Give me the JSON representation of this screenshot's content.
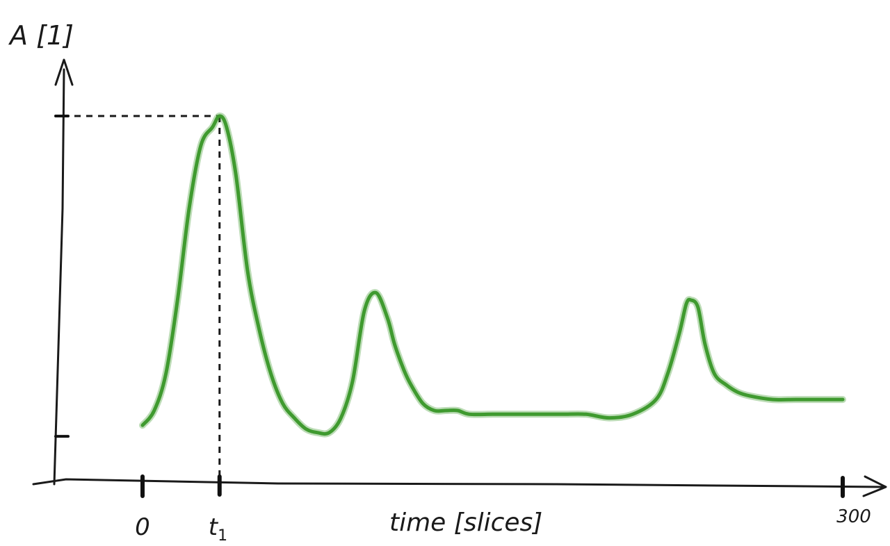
{
  "chart_data": {
    "type": "line",
    "xlabel": "time [slices]",
    "ylabel": "A [1]",
    "x_tick_labels": {
      "zero": "0",
      "t1_main": "t",
      "t1_sub": "1",
      "end": "300"
    },
    "xlim": [
      0,
      300
    ],
    "ylim": [
      0,
      1
    ],
    "t1_x": 33,
    "peak_y": 1.0,
    "y_tick_values": [
      0.13,
      1.0
    ],
    "line_color": "#3f9a2f",
    "grid": false,
    "legend": "none",
    "series": [
      {
        "x": [
          0,
          5,
          10,
          15,
          20,
          25,
          30,
          33,
          36,
          40,
          45,
          50,
          55,
          60,
          65,
          70,
          75,
          80,
          85,
          90,
          95,
          100,
          105,
          108,
          112,
          115,
          120,
          125,
          130,
          135,
          140,
          150,
          160,
          170,
          180,
          190,
          200,
          210,
          220,
          225,
          230,
          233,
          235,
          238,
          241,
          245,
          250,
          255,
          260,
          270,
          280,
          290,
          300
        ],
        "y": [
          0.16,
          0.2,
          0.3,
          0.5,
          0.75,
          0.92,
          0.97,
          1.0,
          0.97,
          0.84,
          0.58,
          0.42,
          0.3,
          0.22,
          0.18,
          0.15,
          0.14,
          0.14,
          0.18,
          0.28,
          0.47,
          0.52,
          0.45,
          0.38,
          0.31,
          0.27,
          0.22,
          0.2,
          0.2,
          0.2,
          0.19,
          0.19,
          0.19,
          0.19,
          0.19,
          0.19,
          0.18,
          0.19,
          0.23,
          0.3,
          0.41,
          0.49,
          0.5,
          0.48,
          0.38,
          0.3,
          0.27,
          0.25,
          0.24,
          0.23,
          0.23,
          0.23,
          0.23
        ]
      }
    ]
  }
}
